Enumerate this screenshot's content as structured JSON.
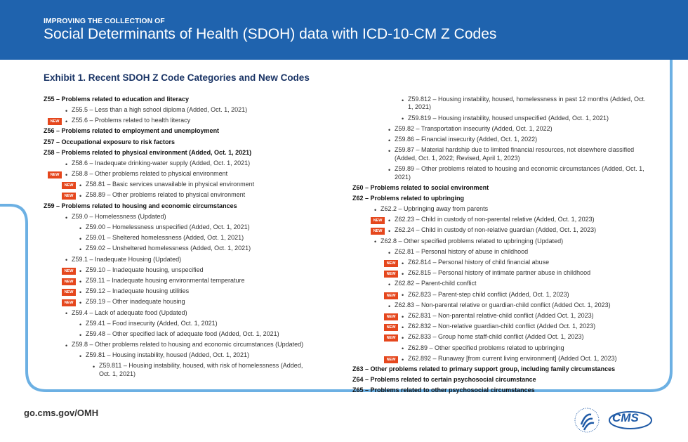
{
  "header": {
    "kicker": "IMPROVING THE COLLECTION OF",
    "title": "Social Determinants of Health (SDOH) data with ICD-10-CM Z Codes"
  },
  "exhibit_title": "Exhibit 1. Recent SDOH Z Code Categories and New Codes",
  "columns": [
    [
      {
        "text": "Z55 – Problems related to education and literacy",
        "level": 0
      },
      {
        "text": "Z55.5 – Less than a high school diploma (Added, Oct. 1, 2021)",
        "level": 2
      },
      {
        "text": "Z55.6 – Problems related to health literacy",
        "level": 2,
        "badge": "NEW"
      },
      {
        "text": "Z56 – Problems related to employment and unemployment",
        "level": 0
      },
      {
        "text": "Z57 – Occupational exposure to risk factors",
        "level": 0
      },
      {
        "text": "Z58 – Problems related to physical environment (Added, Oct. 1, 2021)",
        "level": 0
      },
      {
        "text": "Z58.6 – Inadequate drinking-water supply (Added, Oct. 1, 2021)",
        "level": 2
      },
      {
        "text": "Z58.8 – Other problems related to physical environment",
        "level": 2,
        "badge": "NEW"
      },
      {
        "text": "Z58.81 – Basic services unavailable in physical environment",
        "level": 3,
        "badge": "NEW"
      },
      {
        "text": "Z58.89 – Other problems related to physical environment",
        "level": 3,
        "badge": "NEW"
      },
      {
        "text": "Z59 – Problems related to housing and economic circumstances",
        "level": 0
      },
      {
        "text": "Z59.0 – Homelessness (Updated)",
        "level": 2
      },
      {
        "text": "Z59.00 – Homelessness unspecified (Added, Oct. 1, 2021)",
        "level": 3
      },
      {
        "text": "Z59.01 – Sheltered homelessness (Added, Oct. 1, 2021)",
        "level": 3
      },
      {
        "text": "Z59.02 – Unsheltered homelessness (Added, Oct. 1, 2021)",
        "level": 3
      },
      {
        "text": "Z59.1 – Inadequate Housing (Updated)",
        "level": 2
      },
      {
        "text": "Z59.10 – Inadequate housing, unspecified",
        "level": 3,
        "badge": "NEW"
      },
      {
        "text": "Z59.11 – Inadequate housing environmental temperature",
        "level": 3,
        "badge": "NEW"
      },
      {
        "text": "Z59.12 – Inadequate housing utilities",
        "level": 3,
        "badge": "NEW"
      },
      {
        "text": "Z59.19 – Other inadequate housing",
        "level": 3,
        "badge": "NEW"
      },
      {
        "text": "Z59.4 – Lack of adequate food (Updated)",
        "level": 2
      },
      {
        "text": "Z59.41 – Food insecurity (Added, Oct. 1, 2021)",
        "level": 3
      },
      {
        "text": "Z59.48 – Other specified lack of adequate food (Added, Oct. 1, 2021)",
        "level": 3
      },
      {
        "text": "Z59.8 – Other problems related to housing and economic circumstances (Updated)",
        "level": 2
      },
      {
        "text": "Z59.81 – Housing instability, housed (Added, Oct. 1, 2021)",
        "level": 3
      },
      {
        "text": "Z59.811 – Housing instability, housed, with risk of homelessness (Added, Oct. 1, 2021)",
        "level": 4
      }
    ],
    [
      {
        "text": "Z59.812 – Housing instability, housed, homelessness in past 12 months (Added, Oct. 1, 2021)",
        "level": 4
      },
      {
        "text": "Z59.819 – Housing instability, housed unspecified (Added, Oct. 1, 2021)",
        "level": 4
      },
      {
        "text": "Z59.82 – Transportation insecurity (Added, Oct. 1, 2022)",
        "level": 3
      },
      {
        "text": "Z59.86 – Financial insecurity (Added, Oct. 1, 2022)",
        "level": 3
      },
      {
        "text": "Z59.87 – Material hardship due to limited financial resources, not elsewhere classified (Added, Oct. 1, 2022; Revised, April 1, 2023)",
        "level": 3
      },
      {
        "text": "Z59.89 – Other problems related to housing and economic circumstances (Added, Oct. 1, 2021)",
        "level": 3
      },
      {
        "text": "Z60 – Problems related to social environment",
        "level": 0
      },
      {
        "text": "Z62 – Problems related to upbringing",
        "level": 0
      },
      {
        "text": "Z62.2 – Upbringing away from parents",
        "level": 2
      },
      {
        "text": "Z62.23 – Child in custody of non-parental relative  (Added, Oct. 1, 2023)",
        "level": 3,
        "badge": "NEW"
      },
      {
        "text": "Z62.24 – Child in custody of non-relative guardian  (Added, Oct. 1, 2023)",
        "level": 3,
        "badge": "NEW"
      },
      {
        "text": "Z62.8 – Other specified problems related to upbringing (Updated)",
        "level": 2
      },
      {
        "text": "Z62.81 – Personal history of abuse in childhood",
        "level": 3
      },
      {
        "text": "Z62.814 – Personal history of child financial abuse",
        "level": 4,
        "badge": "NEW"
      },
      {
        "text": "Z62.815 – Personal history of intimate partner abuse in childhood",
        "level": 4,
        "badge": "NEW"
      },
      {
        "text": "Z62.82 – Parent-child conflict",
        "level": 3
      },
      {
        "text": "Z62.823 – Parent-step child conflict (Added, Oct. 1, 2023)",
        "level": 4,
        "badge": "NEW"
      },
      {
        "text": "Z62.83 – Non-parental relative or guardian-child conflict (Added Oct. 1, 2023)",
        "level": 3
      },
      {
        "text": "Z62.831 – Non-parental relative-child conflict (Added Oct. 1, 2023)",
        "level": 4,
        "badge": "NEW"
      },
      {
        "text": "Z62.832 – Non-relative guardian-child conflict (Added Oct. 1, 2023)",
        "level": 4,
        "badge": "NEW"
      },
      {
        "text": "Z62.833 – Group home staff-child conflict (Added Oct. 1, 2023)",
        "level": 4,
        "badge": "NEW"
      },
      {
        "text": "Z62.89 – Other specified problems related to upbringing",
        "level": 4
      },
      {
        "text": "Z62.892 – Runaway [from current living environment] (Added Oct. 1, 2023)",
        "level": 4,
        "badge": "NEW"
      },
      {
        "text": "Z63 – Other problems related to primary support group, including family circumstances",
        "level": 0
      },
      {
        "text": "Z64 – Problems related to certain psychosocial circumstance",
        "level": 0
      },
      {
        "text": "Z65 – Problems related to other psychosocial circumstances",
        "level": 0
      }
    ]
  ],
  "footer": {
    "url": "go.cms.gov/OMH",
    "logo": "CMS"
  }
}
